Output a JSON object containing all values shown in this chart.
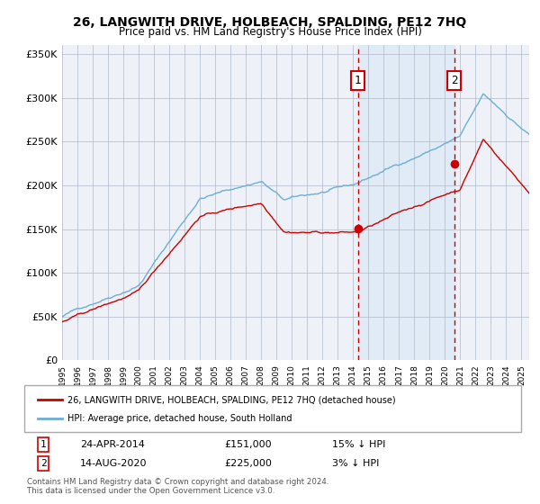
{
  "title": "26, LANGWITH DRIVE, HOLBEACH, SPALDING, PE12 7HQ",
  "subtitle": "Price paid vs. HM Land Registry's House Price Index (HPI)",
  "ylabel_ticks": [
    "£0",
    "£50K",
    "£100K",
    "£150K",
    "£200K",
    "£250K",
    "£300K",
    "£350K"
  ],
  "ytick_vals": [
    0,
    50000,
    100000,
    150000,
    200000,
    250000,
    300000,
    350000
  ],
  "ylim": [
    0,
    360000
  ],
  "xlim_start": 1995.0,
  "xlim_end": 2025.5,
  "annotation1": {
    "date_str": "24-APR-2014",
    "price": 151000,
    "label": "1",
    "year": 2014.31
  },
  "annotation2": {
    "date_str": "14-AUG-2020",
    "price": 225000,
    "label": "2",
    "year": 2020.62
  },
  "legend_line1": "26, LANGWITH DRIVE, HOLBEACH, SPALDING, PE12 7HQ (detached house)",
  "legend_line2": "HPI: Average price, detached house, South Holland",
  "footer1": "Contains HM Land Registry data © Crown copyright and database right 2024.",
  "footer2": "This data is licensed under the Open Government Licence v3.0.",
  "hpi_color": "#6baed6",
  "price_color": "#cc0000",
  "bg_color": "#eef2f8",
  "highlight_color": "#d0e4f5",
  "grid_color": "#b0b8c8",
  "annotation_box_color": "#cc0000"
}
